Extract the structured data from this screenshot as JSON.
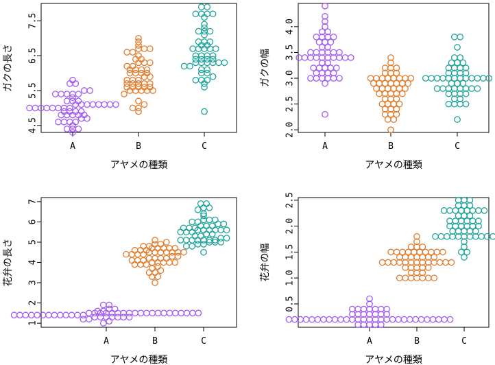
{
  "colors": {
    "A": "#a259f4",
    "B": "#e07b2a",
    "C": "#1fa39a"
  },
  "chart_data": [
    {
      "type": "scatter",
      "subtype": "beeswarm",
      "categories": [
        "A",
        "B",
        "C"
      ],
      "xlabel": "アヤメの種類",
      "ylabel": "ガクの長さ",
      "ylim": [
        4.3,
        8.0
      ],
      "yticks": [
        4.5,
        5.5,
        6.5,
        7.5
      ],
      "series": [
        {
          "category": "A",
          "values": [
            4.3,
            4.4,
            4.4,
            4.4,
            4.5,
            4.6,
            4.6,
            4.6,
            4.6,
            4.7,
            4.7,
            4.8,
            4.8,
            4.8,
            4.8,
            4.8,
            4.9,
            4.9,
            4.9,
            4.9,
            5.0,
            5.0,
            5.0,
            5.0,
            5.0,
            5.0,
            5.0,
            5.0,
            5.1,
            5.1,
            5.1,
            5.1,
            5.1,
            5.1,
            5.1,
            5.1,
            5.2,
            5.2,
            5.2,
            5.3,
            5.4,
            5.4,
            5.4,
            5.4,
            5.4,
            5.5,
            5.5,
            5.7,
            5.7,
            5.8
          ]
        },
        {
          "category": "B",
          "values": [
            4.9,
            5.0,
            5.0,
            5.1,
            5.2,
            5.4,
            5.5,
            5.5,
            5.5,
            5.5,
            5.5,
            5.6,
            5.6,
            5.6,
            5.6,
            5.6,
            5.7,
            5.7,
            5.7,
            5.7,
            5.7,
            5.8,
            5.8,
            5.8,
            5.9,
            5.9,
            6.0,
            6.0,
            6.0,
            6.0,
            6.1,
            6.1,
            6.1,
            6.1,
            6.2,
            6.2,
            6.3,
            6.3,
            6.3,
            6.4,
            6.4,
            6.5,
            6.6,
            6.6,
            6.7,
            6.7,
            6.7,
            6.8,
            6.9,
            7.0
          ]
        },
        {
          "category": "C",
          "values": [
            4.9,
            5.6,
            5.7,
            5.8,
            5.8,
            5.8,
            5.9,
            6.0,
            6.0,
            6.1,
            6.1,
            6.2,
            6.2,
            6.3,
            6.3,
            6.3,
            6.3,
            6.3,
            6.3,
            6.4,
            6.4,
            6.4,
            6.4,
            6.5,
            6.5,
            6.5,
            6.5,
            6.7,
            6.7,
            6.7,
            6.7,
            6.7,
            6.8,
            6.8,
            6.9,
            6.9,
            6.9,
            7.1,
            7.2,
            7.2,
            7.2,
            7.3,
            7.4,
            7.6,
            7.7,
            7.7,
            7.7,
            7.7,
            7.9,
            7.9
          ]
        }
      ]
    },
    {
      "type": "scatter",
      "subtype": "beeswarm",
      "categories": [
        "A",
        "B",
        "C"
      ],
      "xlabel": "アヤメの種類",
      "ylabel": "ガクの幅",
      "ylim": [
        1.95,
        4.45
      ],
      "yticks": [
        2.0,
        2.5,
        3.0,
        3.5,
        4.0
      ],
      "series": [
        {
          "category": "A",
          "values": [
            2.3,
            2.9,
            3.0,
            3.0,
            3.0,
            3.0,
            3.0,
            3.0,
            3.1,
            3.1,
            3.1,
            3.1,
            3.2,
            3.2,
            3.2,
            3.2,
            3.2,
            3.3,
            3.3,
            3.4,
            3.4,
            3.4,
            3.4,
            3.4,
            3.4,
            3.4,
            3.4,
            3.4,
            3.5,
            3.5,
            3.5,
            3.5,
            3.5,
            3.5,
            3.6,
            3.6,
            3.7,
            3.7,
            3.7,
            3.8,
            3.8,
            3.8,
            3.8,
            3.9,
            3.9,
            4.0,
            4.1,
            4.2,
            4.4,
            3.4
          ]
        },
        {
          "category": "B",
          "values": [
            2.0,
            2.2,
            2.2,
            2.3,
            2.3,
            2.3,
            2.4,
            2.4,
            2.4,
            2.5,
            2.5,
            2.5,
            2.5,
            2.6,
            2.6,
            2.6,
            2.7,
            2.7,
            2.7,
            2.7,
            2.7,
            2.8,
            2.8,
            2.8,
            2.8,
            2.8,
            2.8,
            2.9,
            2.9,
            2.9,
            2.9,
            2.9,
            2.9,
            2.9,
            3.0,
            3.0,
            3.0,
            3.0,
            3.0,
            3.0,
            3.0,
            3.0,
            3.1,
            3.1,
            3.1,
            3.2,
            3.2,
            3.2,
            3.3,
            3.4
          ]
        },
        {
          "category": "C",
          "values": [
            2.2,
            2.5,
            2.5,
            2.5,
            2.5,
            2.6,
            2.6,
            2.7,
            2.7,
            2.7,
            2.7,
            2.8,
            2.8,
            2.8,
            2.8,
            2.8,
            2.8,
            2.8,
            2.8,
            2.9,
            2.9,
            3.0,
            3.0,
            3.0,
            3.0,
            3.0,
            3.0,
            3.0,
            3.0,
            3.0,
            3.0,
            3.0,
            3.0,
            3.1,
            3.1,
            3.1,
            3.1,
            3.2,
            3.2,
            3.2,
            3.2,
            3.3,
            3.3,
            3.3,
            3.4,
            3.4,
            3.6,
            3.8,
            3.8,
            2.9
          ]
        }
      ]
    },
    {
      "type": "scatter",
      "subtype": "beeswarm",
      "categories": [
        "A",
        "B",
        "C"
      ],
      "xlabel": "アヤメの種類",
      "ylabel": "花弁の長さ",
      "ylim": [
        0.8,
        7.2
      ],
      "yticks": [
        1,
        2,
        3,
        4,
        5,
        6,
        7
      ],
      "series": [
        {
          "category": "A",
          "values": [
            1.0,
            1.1,
            1.2,
            1.2,
            1.3,
            1.3,
            1.3,
            1.3,
            1.3,
            1.3,
            1.3,
            1.4,
            1.4,
            1.4,
            1.4,
            1.4,
            1.4,
            1.4,
            1.4,
            1.4,
            1.4,
            1.4,
            1.4,
            1.4,
            1.5,
            1.5,
            1.5,
            1.5,
            1.5,
            1.5,
            1.5,
            1.5,
            1.5,
            1.5,
            1.5,
            1.5,
            1.5,
            1.5,
            1.5,
            1.5,
            1.5,
            1.5,
            1.5,
            1.5,
            1.6,
            1.6,
            1.7,
            1.7,
            1.9,
            1.9
          ]
        },
        {
          "category": "B",
          "values": [
            3.0,
            3.3,
            3.3,
            3.5,
            3.5,
            3.6,
            3.7,
            3.8,
            3.9,
            3.9,
            3.9,
            4.0,
            4.0,
            4.0,
            4.0,
            4.0,
            4.1,
            4.1,
            4.1,
            4.2,
            4.2,
            4.2,
            4.2,
            4.3,
            4.3,
            4.4,
            4.4,
            4.4,
            4.4,
            4.5,
            4.5,
            4.5,
            4.5,
            4.5,
            4.5,
            4.5,
            4.6,
            4.6,
            4.6,
            4.7,
            4.7,
            4.7,
            4.7,
            4.7,
            4.8,
            4.8,
            4.9,
            4.9,
            5.0,
            5.1
          ]
        },
        {
          "category": "C",
          "values": [
            4.5,
            4.8,
            4.8,
            4.9,
            4.9,
            5.0,
            5.0,
            5.0,
            5.1,
            5.1,
            5.1,
            5.1,
            5.1,
            5.1,
            5.1,
            5.2,
            5.2,
            5.3,
            5.3,
            5.4,
            5.4,
            5.5,
            5.5,
            5.5,
            5.6,
            5.6,
            5.6,
            5.6,
            5.6,
            5.6,
            5.7,
            5.7,
            5.7,
            5.8,
            5.8,
            5.8,
            5.9,
            5.9,
            6.0,
            6.0,
            6.1,
            6.1,
            6.1,
            6.3,
            6.4,
            6.6,
            6.7,
            6.7,
            6.9,
            6.9
          ]
        }
      ]
    },
    {
      "type": "scatter",
      "subtype": "beeswarm",
      "categories": [
        "A",
        "B",
        "C"
      ],
      "xlabel": "アヤメの種類",
      "ylabel": "花弁の幅",
      "ylim": [
        0.05,
        2.55
      ],
      "yticks": [
        0.5,
        1.0,
        1.5,
        2.0,
        2.5
      ],
      "series": [
        {
          "category": "A",
          "values": [
            0.1,
            0.1,
            0.1,
            0.1,
            0.1,
            0.2,
            0.2,
            0.2,
            0.2,
            0.2,
            0.2,
            0.2,
            0.2,
            0.2,
            0.2,
            0.2,
            0.2,
            0.2,
            0.2,
            0.2,
            0.2,
            0.2,
            0.2,
            0.2,
            0.2,
            0.2,
            0.2,
            0.2,
            0.2,
            0.2,
            0.2,
            0.2,
            0.2,
            0.2,
            0.3,
            0.3,
            0.3,
            0.3,
            0.3,
            0.3,
            0.3,
            0.4,
            0.4,
            0.4,
            0.4,
            0.4,
            0.4,
            0.4,
            0.5,
            0.6
          ]
        },
        {
          "category": "B",
          "values": [
            1.0,
            1.0,
            1.0,
            1.0,
            1.0,
            1.0,
            1.0,
            1.1,
            1.1,
            1.1,
            1.2,
            1.2,
            1.2,
            1.2,
            1.2,
            1.3,
            1.3,
            1.3,
            1.3,
            1.3,
            1.3,
            1.3,
            1.3,
            1.3,
            1.3,
            1.3,
            1.3,
            1.3,
            1.4,
            1.4,
            1.4,
            1.4,
            1.4,
            1.4,
            1.4,
            1.5,
            1.5,
            1.5,
            1.5,
            1.5,
            1.5,
            1.5,
            1.5,
            1.5,
            1.5,
            1.6,
            1.6,
            1.6,
            1.7,
            1.8
          ]
        },
        {
          "category": "C",
          "values": [
            1.4,
            1.5,
            1.5,
            1.6,
            1.7,
            1.8,
            1.8,
            1.8,
            1.8,
            1.8,
            1.8,
            1.8,
            1.8,
            1.8,
            1.8,
            1.8,
            1.9,
            1.9,
            1.9,
            1.9,
            1.9,
            2.0,
            2.0,
            2.0,
            2.0,
            2.0,
            2.0,
            2.1,
            2.1,
            2.1,
            2.1,
            2.1,
            2.1,
            2.2,
            2.2,
            2.2,
            2.3,
            2.3,
            2.3,
            2.3,
            2.3,
            2.3,
            2.3,
            2.3,
            2.4,
            2.4,
            2.4,
            2.5,
            2.5,
            2.5
          ]
        }
      ]
    }
  ]
}
